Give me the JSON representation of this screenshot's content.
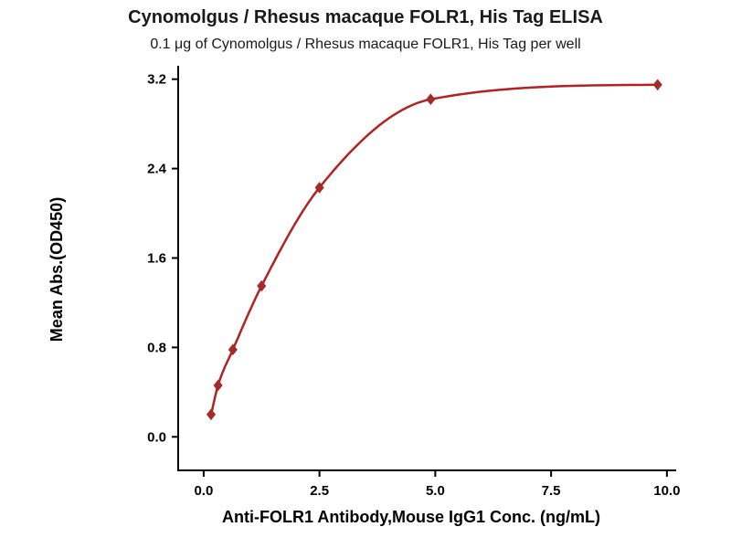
{
  "page": {
    "background": "#ffffff"
  },
  "chart_data": {
    "type": "scatter",
    "fit_line": true,
    "title": "Cynomolgus / Rhesus macaque FOLR1, His Tag ELISA",
    "subtitle": "0.1 μg of Cynomolgus / Rhesus macaque FOLR1, His Tag per well",
    "xlabel": "Anti-FOLR1 Antibody,Mouse IgG1 Conc. (ng/mL)",
    "ylabel": "Mean Abs.(OD450)",
    "x": [
      0.16,
      0.31,
      0.63,
      1.25,
      2.5,
      4.9,
      9.8
    ],
    "y": [
      0.2,
      0.46,
      0.78,
      1.35,
      2.23,
      3.02,
      3.15
    ],
    "xticks": [
      0.0,
      2.5,
      5.0,
      7.5,
      10.0
    ],
    "xtick_labels": [
      "0.0",
      "2.5",
      "5.0",
      "7.5",
      "10.0"
    ],
    "yticks": [
      0.0,
      0.8,
      1.6,
      2.4,
      3.2
    ],
    "ytick_labels": [
      "0.0",
      "0.8",
      "1.6",
      "2.4",
      "3.2"
    ],
    "xlim": [
      -0.55,
      10.2
    ],
    "ylim": [
      -0.3,
      3.32
    ],
    "marker": "diamond",
    "line_color": "#b22222",
    "marker_color": "#a52a2a",
    "axis_color": "#000000",
    "legend": "none",
    "grid": "off"
  }
}
